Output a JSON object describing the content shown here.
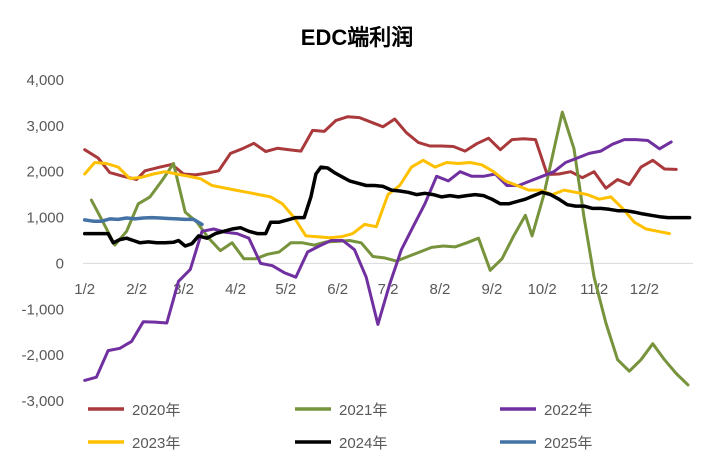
{
  "chart_data": {
    "type": "line",
    "title": "EDC端利润",
    "xlabel": "",
    "ylabel": "",
    "ylim": [
      -3000,
      4000
    ],
    "y_ticks": [
      4000,
      3000,
      2000,
      1000,
      0,
      -1000,
      -2000,
      -3000
    ],
    "y_tick_labels": [
      "4,000",
      "3,000",
      "2,000",
      "1,000",
      "0",
      "-1,000",
      "-2,000",
      "-3,000"
    ],
    "x_ticks": [
      {
        "label": "1/2",
        "x": 2
      },
      {
        "label": "2/2",
        "x": 33
      },
      {
        "label": "3/2",
        "x": 61
      },
      {
        "label": "4/2",
        "x": 92
      },
      {
        "label": "5/2",
        "x": 122
      },
      {
        "label": "6/2",
        "x": 153
      },
      {
        "label": "7/2",
        "x": 183
      },
      {
        "label": "8/2",
        "x": 214
      },
      {
        "label": "9/2",
        "x": 245
      },
      {
        "label": "10/2",
        "x": 275
      },
      {
        "label": "11/2",
        "x": 306
      },
      {
        "label": "12/2",
        "x": 336
      }
    ],
    "xlim": [
      1,
      365
    ],
    "grid": false,
    "legend_position": "bottom",
    "series": [
      {
        "name": "2020年",
        "color": "#A9393B",
        "width": 3,
        "points": [
          [
            2,
            2480
          ],
          [
            10,
            2300
          ],
          [
            17,
            1980
          ],
          [
            25,
            1900
          ],
          [
            33,
            1830
          ],
          [
            38,
            2020
          ],
          [
            47,
            2100
          ],
          [
            54,
            2160
          ],
          [
            61,
            1950
          ],
          [
            68,
            1930
          ],
          [
            75,
            1970
          ],
          [
            82,
            2020
          ],
          [
            89,
            2400
          ],
          [
            96,
            2500
          ],
          [
            103,
            2620
          ],
          [
            110,
            2440
          ],
          [
            117,
            2510
          ],
          [
            124,
            2480
          ],
          [
            131,
            2450
          ],
          [
            138,
            2900
          ],
          [
            145,
            2880
          ],
          [
            152,
            3120
          ],
          [
            159,
            3200
          ],
          [
            166,
            3180
          ],
          [
            173,
            3080
          ],
          [
            180,
            2980
          ],
          [
            187,
            3150
          ],
          [
            194,
            2850
          ],
          [
            201,
            2640
          ],
          [
            208,
            2560
          ],
          [
            215,
            2560
          ],
          [
            222,
            2550
          ],
          [
            229,
            2450
          ],
          [
            236,
            2610
          ],
          [
            243,
            2730
          ],
          [
            250,
            2480
          ],
          [
            257,
            2700
          ],
          [
            264,
            2720
          ],
          [
            271,
            2700
          ],
          [
            278,
            1940
          ],
          [
            285,
            1950
          ],
          [
            292,
            2000
          ],
          [
            299,
            1870
          ],
          [
            306,
            2000
          ],
          [
            313,
            1640
          ],
          [
            320,
            1830
          ],
          [
            327,
            1720
          ],
          [
            334,
            2100
          ],
          [
            341,
            2250
          ],
          [
            348,
            2060
          ],
          [
            355,
            2050
          ]
        ]
      },
      {
        "name": "2021年",
        "color": "#77933C",
        "width": 3,
        "points": [
          [
            6,
            1380
          ],
          [
            13,
            900
          ],
          [
            20,
            400
          ],
          [
            27,
            700
          ],
          [
            34,
            1300
          ],
          [
            41,
            1450
          ],
          [
            48,
            1800
          ],
          [
            55,
            2180
          ],
          [
            62,
            1120
          ],
          [
            69,
            900
          ],
          [
            76,
            550
          ],
          [
            83,
            280
          ],
          [
            90,
            450
          ],
          [
            97,
            100
          ],
          [
            104,
            100
          ],
          [
            111,
            200
          ],
          [
            118,
            250
          ],
          [
            125,
            450
          ],
          [
            132,
            450
          ],
          [
            139,
            400
          ],
          [
            146,
            470
          ],
          [
            153,
            480
          ],
          [
            160,
            500
          ],
          [
            167,
            450
          ],
          [
            174,
            150
          ],
          [
            181,
            120
          ],
          [
            188,
            50
          ],
          [
            195,
            150
          ],
          [
            202,
            250
          ],
          [
            209,
            350
          ],
          [
            216,
            380
          ],
          [
            223,
            360
          ],
          [
            230,
            450
          ],
          [
            237,
            550
          ],
          [
            244,
            -150
          ],
          [
            251,
            100
          ],
          [
            258,
            600
          ],
          [
            265,
            1050
          ],
          [
            269,
            600
          ],
          [
            276,
            1500
          ],
          [
            283,
            2650
          ],
          [
            287,
            3300
          ],
          [
            294,
            2500
          ],
          [
            300,
            1000
          ],
          [
            306,
            -300
          ],
          [
            313,
            -1300
          ],
          [
            320,
            -2100
          ],
          [
            327,
            -2350
          ],
          [
            334,
            -2100
          ],
          [
            341,
            -1750
          ],
          [
            348,
            -2100
          ],
          [
            355,
            -2400
          ],
          [
            362,
            -2650
          ]
        ]
      },
      {
        "name": "2022年",
        "color": "#7030A0",
        "width": 3,
        "points": [
          [
            2,
            -2550
          ],
          [
            9,
            -2480
          ],
          [
            16,
            -1900
          ],
          [
            23,
            -1850
          ],
          [
            30,
            -1700
          ],
          [
            37,
            -1270
          ],
          [
            44,
            -1280
          ],
          [
            51,
            -1300
          ],
          [
            58,
            -390
          ],
          [
            65,
            -130
          ],
          [
            72,
            700
          ],
          [
            79,
            750
          ],
          [
            86,
            680
          ],
          [
            93,
            650
          ],
          [
            100,
            550
          ],
          [
            107,
            0
          ],
          [
            114,
            -50
          ],
          [
            121,
            -200
          ],
          [
            128,
            -300
          ],
          [
            135,
            250
          ],
          [
            142,
            380
          ],
          [
            149,
            500
          ],
          [
            156,
            500
          ],
          [
            163,
            300
          ],
          [
            170,
            -300
          ],
          [
            177,
            -1330
          ],
          [
            184,
            -450
          ],
          [
            191,
            300
          ],
          [
            198,
            800
          ],
          [
            205,
            1300
          ],
          [
            212,
            1900
          ],
          [
            219,
            1800
          ],
          [
            226,
            2000
          ],
          [
            233,
            1900
          ],
          [
            240,
            1900
          ],
          [
            247,
            1950
          ],
          [
            254,
            1700
          ],
          [
            261,
            1700
          ],
          [
            268,
            1800
          ],
          [
            275,
            1900
          ],
          [
            282,
            2000
          ],
          [
            289,
            2200
          ],
          [
            296,
            2300
          ],
          [
            303,
            2400
          ],
          [
            310,
            2450
          ],
          [
            317,
            2600
          ],
          [
            324,
            2700
          ],
          [
            331,
            2700
          ],
          [
            338,
            2680
          ],
          [
            345,
            2500
          ],
          [
            352,
            2650
          ]
        ]
      },
      {
        "name": "2023年",
        "color": "#FFC000",
        "width": 3,
        "points": [
          [
            2,
            1950
          ],
          [
            8,
            2200
          ],
          [
            15,
            2180
          ],
          [
            22,
            2100
          ],
          [
            29,
            1850
          ],
          [
            36,
            1880
          ],
          [
            43,
            1950
          ],
          [
            50,
            2000
          ],
          [
            57,
            1950
          ],
          [
            64,
            1900
          ],
          [
            71,
            1850
          ],
          [
            78,
            1700
          ],
          [
            85,
            1650
          ],
          [
            92,
            1600
          ],
          [
            99,
            1550
          ],
          [
            106,
            1500
          ],
          [
            113,
            1450
          ],
          [
            120,
            1300
          ],
          [
            127,
            1000
          ],
          [
            134,
            600
          ],
          [
            141,
            580
          ],
          [
            148,
            560
          ],
          [
            155,
            580
          ],
          [
            162,
            650
          ],
          [
            169,
            850
          ],
          [
            176,
            800
          ],
          [
            183,
            1500
          ],
          [
            190,
            1700
          ],
          [
            197,
            2100
          ],
          [
            204,
            2250
          ],
          [
            211,
            2100
          ],
          [
            218,
            2200
          ],
          [
            225,
            2180
          ],
          [
            232,
            2200
          ],
          [
            239,
            2150
          ],
          [
            246,
            2000
          ],
          [
            253,
            1800
          ],
          [
            260,
            1700
          ],
          [
            267,
            1600
          ],
          [
            274,
            1600
          ],
          [
            281,
            1500
          ],
          [
            288,
            1600
          ],
          [
            295,
            1550
          ],
          [
            302,
            1500
          ],
          [
            309,
            1400
          ],
          [
            316,
            1450
          ],
          [
            323,
            1200
          ],
          [
            330,
            900
          ],
          [
            337,
            750
          ],
          [
            344,
            700
          ],
          [
            351,
            650
          ]
        ]
      },
      {
        "name": "2024年",
        "color": "#000000",
        "width": 3.5,
        "points": [
          [
            2,
            650
          ],
          [
            9,
            650
          ],
          [
            16,
            650
          ],
          [
            19,
            450
          ],
          [
            23,
            520
          ],
          [
            27,
            550
          ],
          [
            31,
            500
          ],
          [
            35,
            450
          ],
          [
            40,
            470
          ],
          [
            45,
            450
          ],
          [
            50,
            450
          ],
          [
            55,
            460
          ],
          [
            58,
            500
          ],
          [
            62,
            380
          ],
          [
            66,
            430
          ],
          [
            70,
            600
          ],
          [
            75,
            550
          ],
          [
            80,
            650
          ],
          [
            85,
            700
          ],
          [
            90,
            750
          ],
          [
            95,
            780
          ],
          [
            100,
            700
          ],
          [
            105,
            650
          ],
          [
            110,
            650
          ],
          [
            113,
            900
          ],
          [
            118,
            900
          ],
          [
            123,
            950
          ],
          [
            128,
            1000
          ],
          [
            133,
            1000
          ],
          [
            137,
            1450
          ],
          [
            140,
            1950
          ],
          [
            143,
            2100
          ],
          [
            147,
            2080
          ],
          [
            151,
            1980
          ],
          [
            155,
            1900
          ],
          [
            160,
            1800
          ],
          [
            165,
            1750
          ],
          [
            170,
            1700
          ],
          [
            175,
            1700
          ],
          [
            180,
            1680
          ],
          [
            185,
            1600
          ],
          [
            190,
            1580
          ],
          [
            195,
            1550
          ],
          [
            200,
            1500
          ],
          [
            205,
            1530
          ],
          [
            210,
            1500
          ],
          [
            215,
            1450
          ],
          [
            220,
            1480
          ],
          [
            225,
            1450
          ],
          [
            230,
            1480
          ],
          [
            235,
            1500
          ],
          [
            240,
            1480
          ],
          [
            245,
            1400
          ],
          [
            250,
            1300
          ],
          [
            255,
            1300
          ],
          [
            260,
            1350
          ],
          [
            265,
            1400
          ],
          [
            270,
            1480
          ],
          [
            275,
            1550
          ],
          [
            280,
            1500
          ],
          [
            285,
            1400
          ],
          [
            290,
            1280
          ],
          [
            295,
            1250
          ],
          [
            300,
            1250
          ],
          [
            305,
            1200
          ],
          [
            310,
            1200
          ],
          [
            315,
            1180
          ],
          [
            320,
            1150
          ],
          [
            325,
            1150
          ],
          [
            330,
            1120
          ],
          [
            335,
            1080
          ],
          [
            340,
            1050
          ],
          [
            345,
            1020
          ],
          [
            350,
            1000
          ],
          [
            355,
            1000
          ],
          [
            363,
            1000
          ]
        ]
      },
      {
        "name": "2025年",
        "color": "#4472A4",
        "width": 3.5,
        "points": [
          [
            2,
            950
          ],
          [
            7,
            920
          ],
          [
            12,
            920
          ],
          [
            17,
            970
          ],
          [
            22,
            960
          ],
          [
            27,
            990
          ],
          [
            32,
            970
          ],
          [
            37,
            990
          ],
          [
            42,
            1000
          ],
          [
            47,
            990
          ],
          [
            52,
            980
          ],
          [
            57,
            970
          ],
          [
            62,
            960
          ],
          [
            67,
            960
          ],
          [
            72,
            850
          ]
        ]
      }
    ]
  }
}
